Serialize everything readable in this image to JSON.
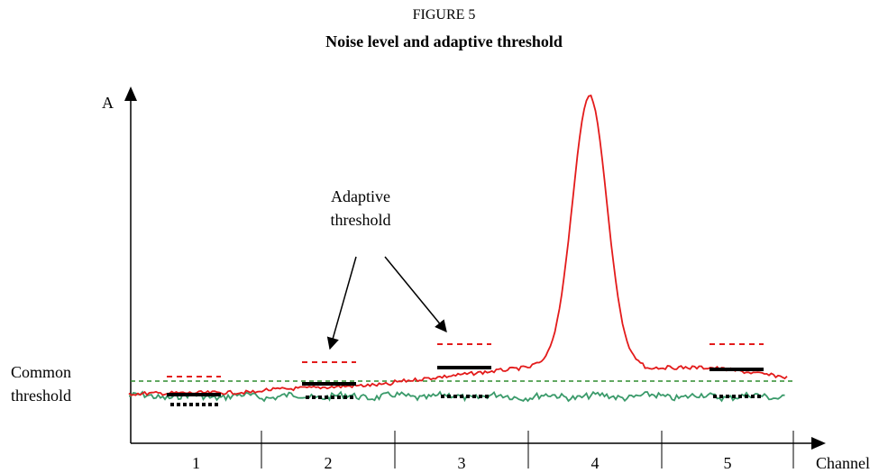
{
  "figure_label": "FIGURE 5",
  "chart_data": {
    "type": "line",
    "title": "Noise level and adaptive threshold",
    "xlabel": "Channel",
    "ylabel": "A",
    "categories": [
      "1",
      "2",
      "3",
      "4",
      "5"
    ],
    "common_threshold_label": [
      "Common",
      "threshold"
    ],
    "adaptive_threshold_label": [
      "Adaptive",
      "threshold"
    ],
    "colors": {
      "signal": "#e31b1b",
      "noise": "#3a9a6a",
      "common_threshold": "#2e8b2e",
      "adaptive_threshold": "#e31b1b",
      "level_bar": "#000000"
    }
  }
}
